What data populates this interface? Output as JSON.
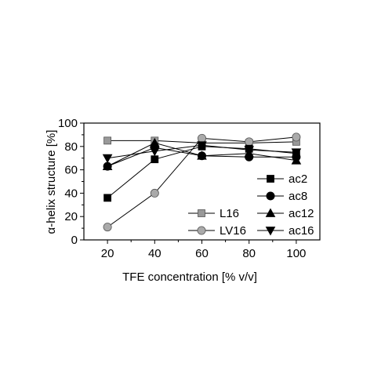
{
  "chart_data": {
    "type": "line",
    "title": "",
    "xlabel": "TFE concentration [% v/v]",
    "ylabel": "α-helix structure [%]",
    "x": [
      20,
      40,
      60,
      80,
      100
    ],
    "xlim": [
      10,
      110
    ],
    "ylim": [
      0,
      100
    ],
    "xticks": [
      20,
      40,
      60,
      80,
      100
    ],
    "yticks": [
      0,
      20,
      40,
      60,
      80,
      100
    ],
    "grid": false,
    "legend_position": "right",
    "series": [
      {
        "name": "L16",
        "marker": "square",
        "color": "#999999",
        "values": [
          85,
          85,
          83,
          83,
          84
        ]
      },
      {
        "name": "LV16",
        "marker": "circle",
        "color": "#aaaaaa",
        "values": [
          11,
          40,
          87,
          84,
          88
        ]
      },
      {
        "name": "ac2",
        "marker": "square",
        "color": "#000000",
        "values": [
          36,
          69,
          80,
          78,
          74
        ]
      },
      {
        "name": "ac8",
        "marker": "circle",
        "color": "#000000",
        "values": [
          63,
          79,
          72,
          71,
          71
        ]
      },
      {
        "name": "ac12",
        "marker": "triangle-up",
        "color": "#000000",
        "values": [
          63,
          83,
          72,
          74,
          68
        ]
      },
      {
        "name": "ac16",
        "marker": "triangle-down",
        "color": "#000000",
        "values": [
          70,
          76,
          81,
          77,
          75
        ]
      }
    ]
  }
}
